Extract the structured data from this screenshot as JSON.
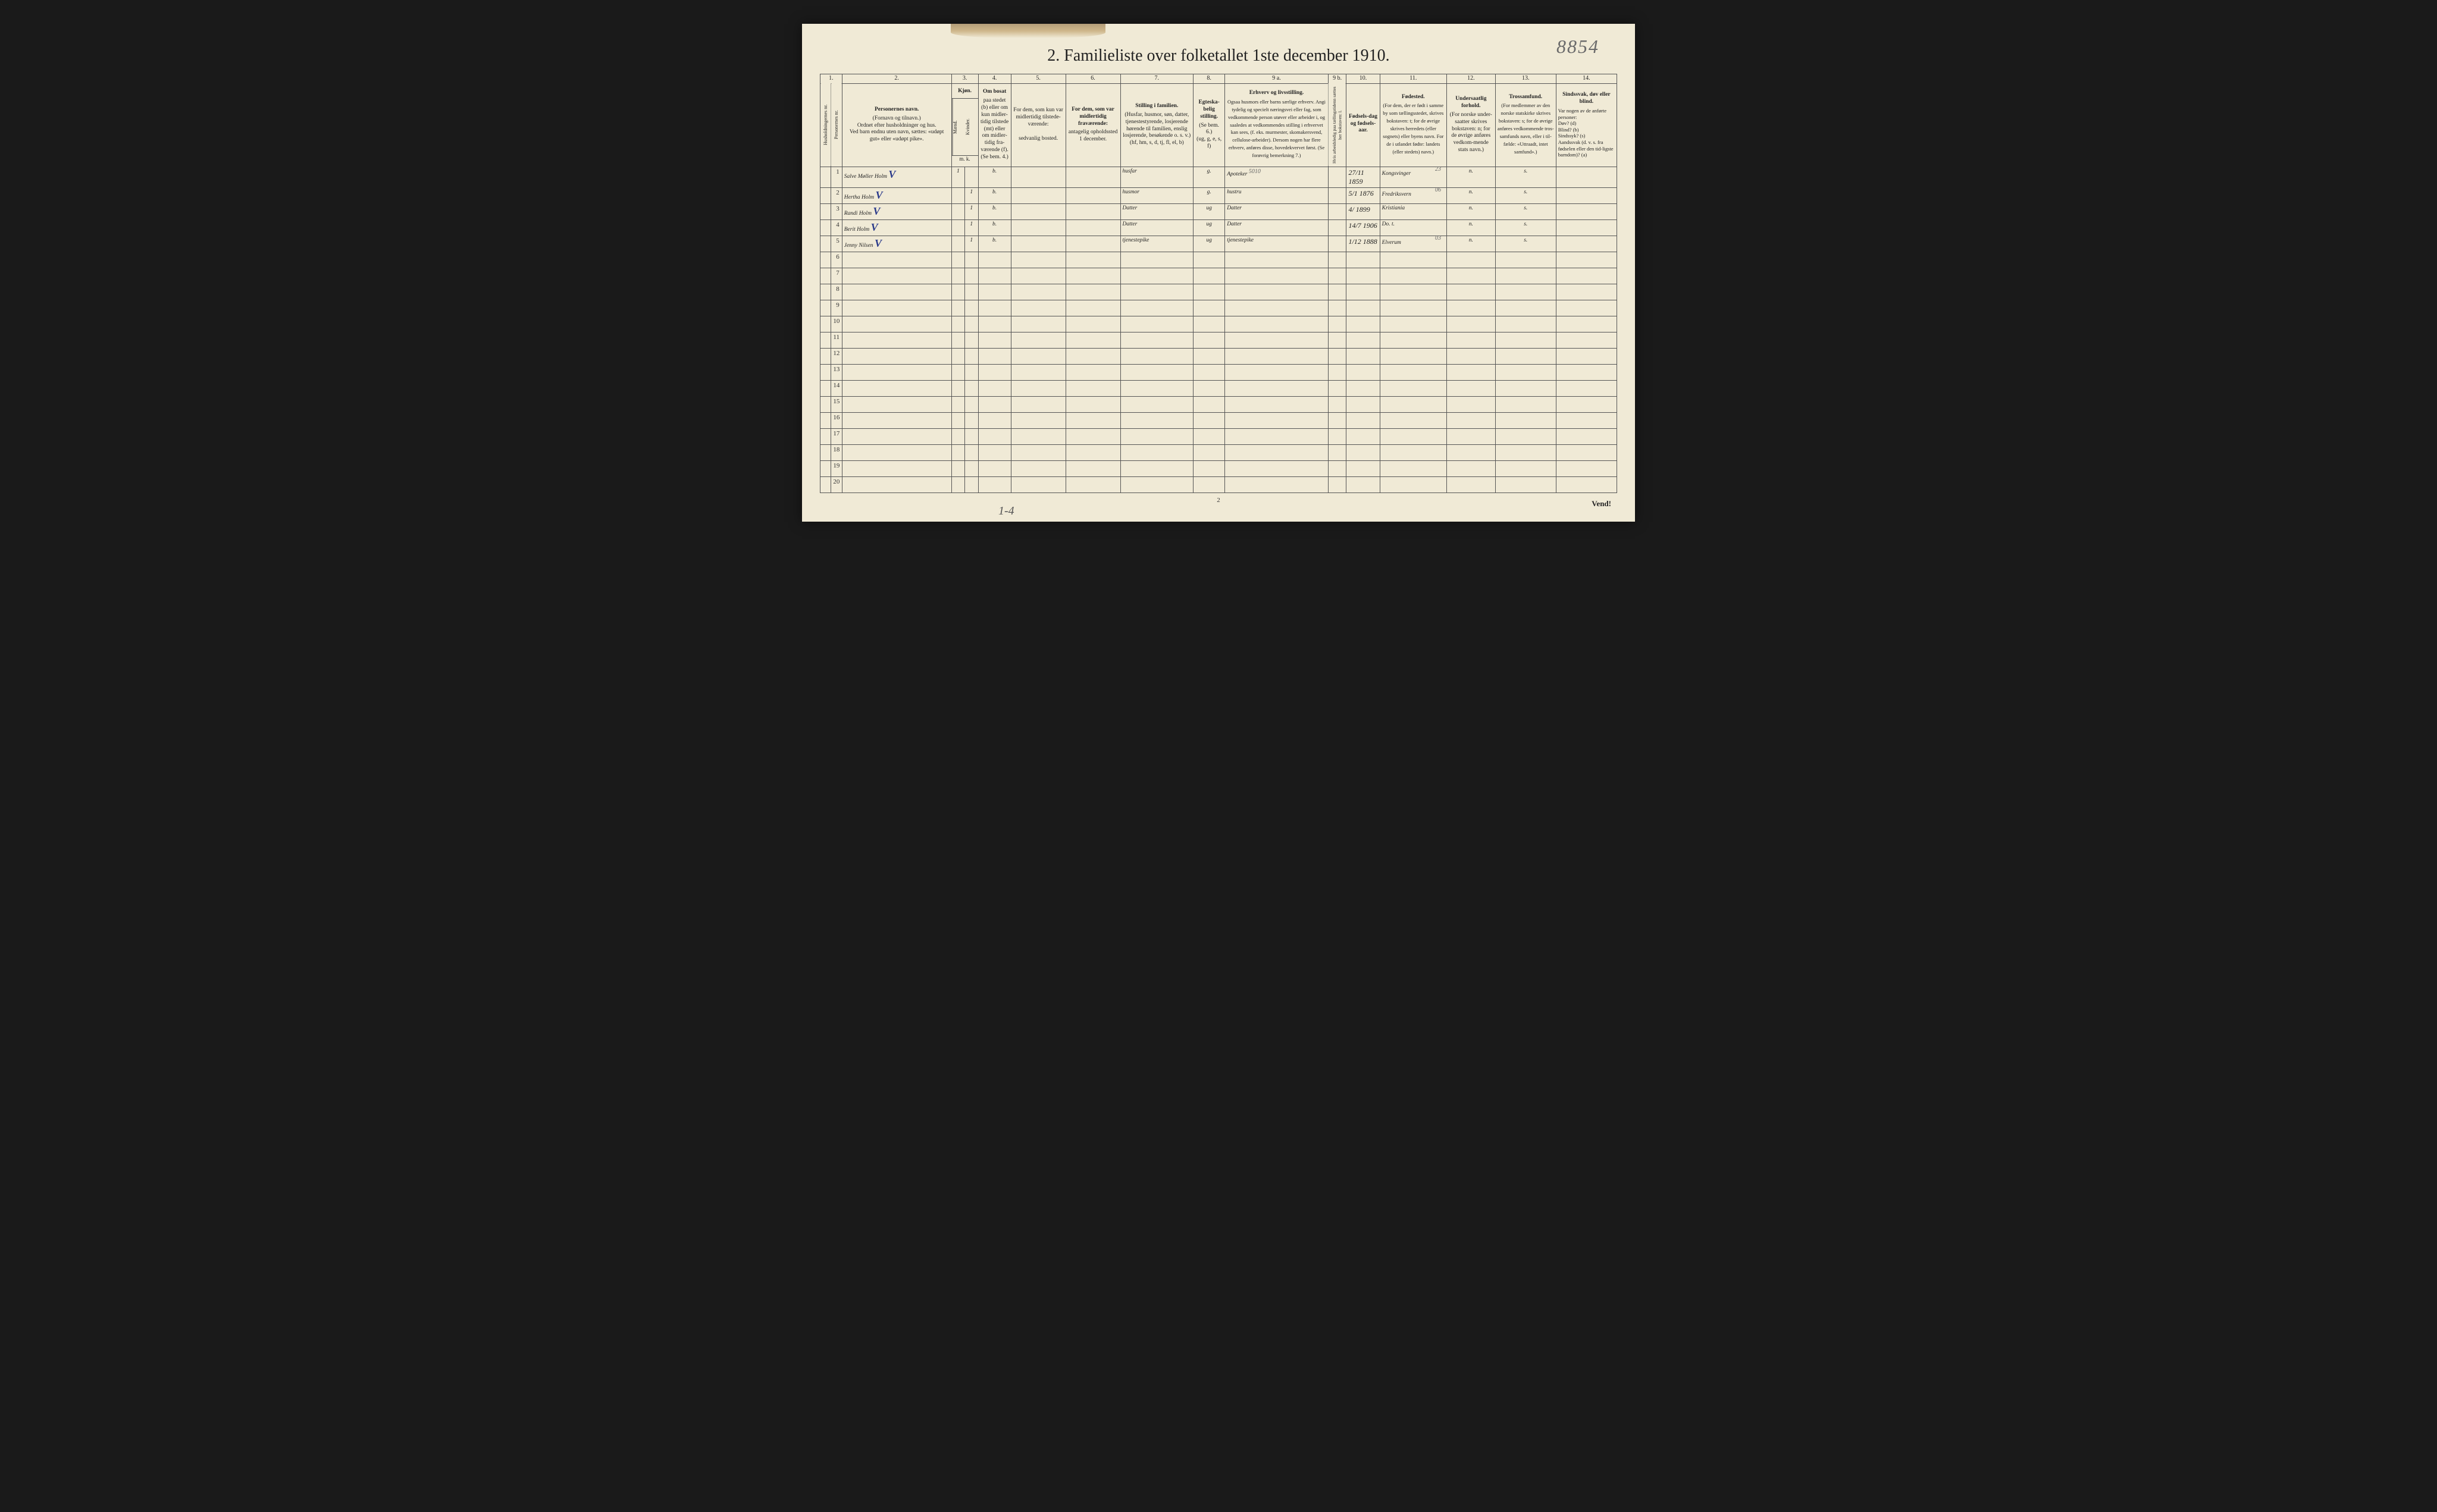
{
  "handwritten_topright": "8854",
  "title": "2.  Familieliste over folketallet 1ste december 1910.",
  "col_numbers": [
    "1.",
    "",
    "2.",
    "3.",
    "",
    "4.",
    "5.",
    "6.",
    "7.",
    "8.",
    "9 a.",
    "9 b.",
    "10.",
    "11.",
    "12.",
    "13.",
    "14."
  ],
  "headers": {
    "c1a": "Husholdningernes nr.",
    "c1b": "Personernes nr.",
    "c2_title": "Personernes navn.",
    "c2_body": "(Fornavn og tilnavn.)\nOrdnet efter husholdninger og hus.\nVed barn endnu uten navn, sættes: «udøpt gut» eller «udøpt pike».",
    "c3_title": "Kjøn.",
    "c3a": "Mænd.",
    "c3b": "Kvinder.",
    "c3_sub": "m.   k.",
    "c4_title": "Om bosat",
    "c4_body": "paa stedet (b) eller om kun midler-tidig tilstede (mt) eller om midler-tidig fra-værende (f). (Se bem. 4.)",
    "c5_title": "For dem, som kun var midlertidig tilstede-værende:",
    "c5_body": "sedvanlig bosted.",
    "c6_title": "For dem, som var midlertidig fraværende:",
    "c6_body": "antagelig opholdssted 1 december.",
    "c7_title": "Stilling i familien.",
    "c7_body": "(Husfar, husmor, søn, datter, tjenestestyrende, losjerende hørende til familien, enslig losjerende, besøkende o. s. v.)\n(hf, hm, s, d, tj, fl, el, b)",
    "c8_title": "Egteska-belig stilling.",
    "c8_body": "(Se bem. 6.)\n(ug, g, e, s, f)",
    "c9a_title": "Erhverv og livsstilling.",
    "c9a_body": "Ogsaa husmors eller barns særlige erhverv. Angi tydelig og specielt næringsvei eller fag, som vedkommende person utøver eller arbeider i, og saaledes at vedkommendes stilling i erhvervet kan sees, (f. eks. murmester, skomakersvend, cellulose-arbeider). Dersom nogen har flere erhverv, anføres disse, hovedekvervet først. (Se forøvrig bemerkning 7.)",
    "c9b_body": "Hvis arbeidsledig paa tællingstidenn sættes her bokstaven: l.",
    "c10_title": "Fødsels-dag og fødsels-aar.",
    "c11_title": "Fødested.",
    "c11_body": "(For dem, der er født i samme by som tællingsstedet, skrives bokstaven: t; for de øvrige skrives herredets (eller sognets) eller byens navn. For de i utlandet fødte: landets (eller stedets) navn.)",
    "c12_title": "Undersaatlig forhold.",
    "c12_body": "(For norske under-saatter skrives bokstaven: n; for de øvrige anføres vedkom-mende stats navn.)",
    "c13_title": "Trossamfund.",
    "c13_body": "(For medlemmer av den norske statskirke skrives bokstaven: s; for de øvrige anføres vedkommende tros-samfunds navn, eller i til-fælde: «Uttraadt, intet samfund».)",
    "c14_title": "Sindssvak, døv eller blind.",
    "c14_body": "Var nogen av de anførte personer:\nDøv?        (d)\nBlind?      (b)\nSindssyk? (s)\nAandssvak (d. v. s. fra fødselen eller den tid-ligste barndom)? (a)"
  },
  "rows": [
    {
      "n": "1",
      "name": "Salve Møller Holm",
      "check": "V",
      "m": "1",
      "k": "",
      "b": "b.",
      "c7": "husfar",
      "c8": "g.",
      "c9": "Apoteker",
      "c9note": "5010",
      "c10": "27/11 1859",
      "c11": "Kongsvinger",
      "c11sup": "23",
      "c12": "n.",
      "c13": "s."
    },
    {
      "n": "2",
      "name": "Hertha Holm",
      "check": "V",
      "m": "",
      "k": "1",
      "b": "b.",
      "c7": "husmor",
      "c8": "g.",
      "c9": "hustru",
      "c10": "5/1 1876",
      "c11": "Fredriksvern",
      "c11sup": "06",
      "c12": "n.",
      "c13": "s."
    },
    {
      "n": "3",
      "name": "Randi Holm",
      "check": "V",
      "m": "",
      "k": "1",
      "b": "b.",
      "c7": "Datter",
      "c8": "ug",
      "c9": "Datter",
      "c10": "4/ 1899",
      "c11": "Kristiania",
      "c12": "n.",
      "c13": "s."
    },
    {
      "n": "4",
      "name": "Berit Holm",
      "check": "V",
      "m": "",
      "k": "1",
      "b": "b.",
      "c7": "Datter",
      "c8": "ug",
      "c9": "Datter",
      "c10": "14/7 1906",
      "c11": "Do.  t.",
      "c12": "n.",
      "c13": "s."
    },
    {
      "n": "5",
      "name": "Jenny Nilsen",
      "check": "V",
      "m": "",
      "k": "1",
      "b": "b.",
      "c7": "tjenestepike",
      "c8": "ug",
      "c9": "tjenestepike",
      "c10": "1/12 1888",
      "c11": "Elverum",
      "c11sup": "03",
      "c12": "n.",
      "c13": "s."
    }
  ],
  "empty_rows": [
    "6",
    "7",
    "8",
    "9",
    "10",
    "11",
    "12",
    "13",
    "14",
    "15",
    "16",
    "17",
    "18",
    "19",
    "20"
  ],
  "footer_page": "2",
  "vend": "Vend!",
  "bottom_note": "1-4"
}
